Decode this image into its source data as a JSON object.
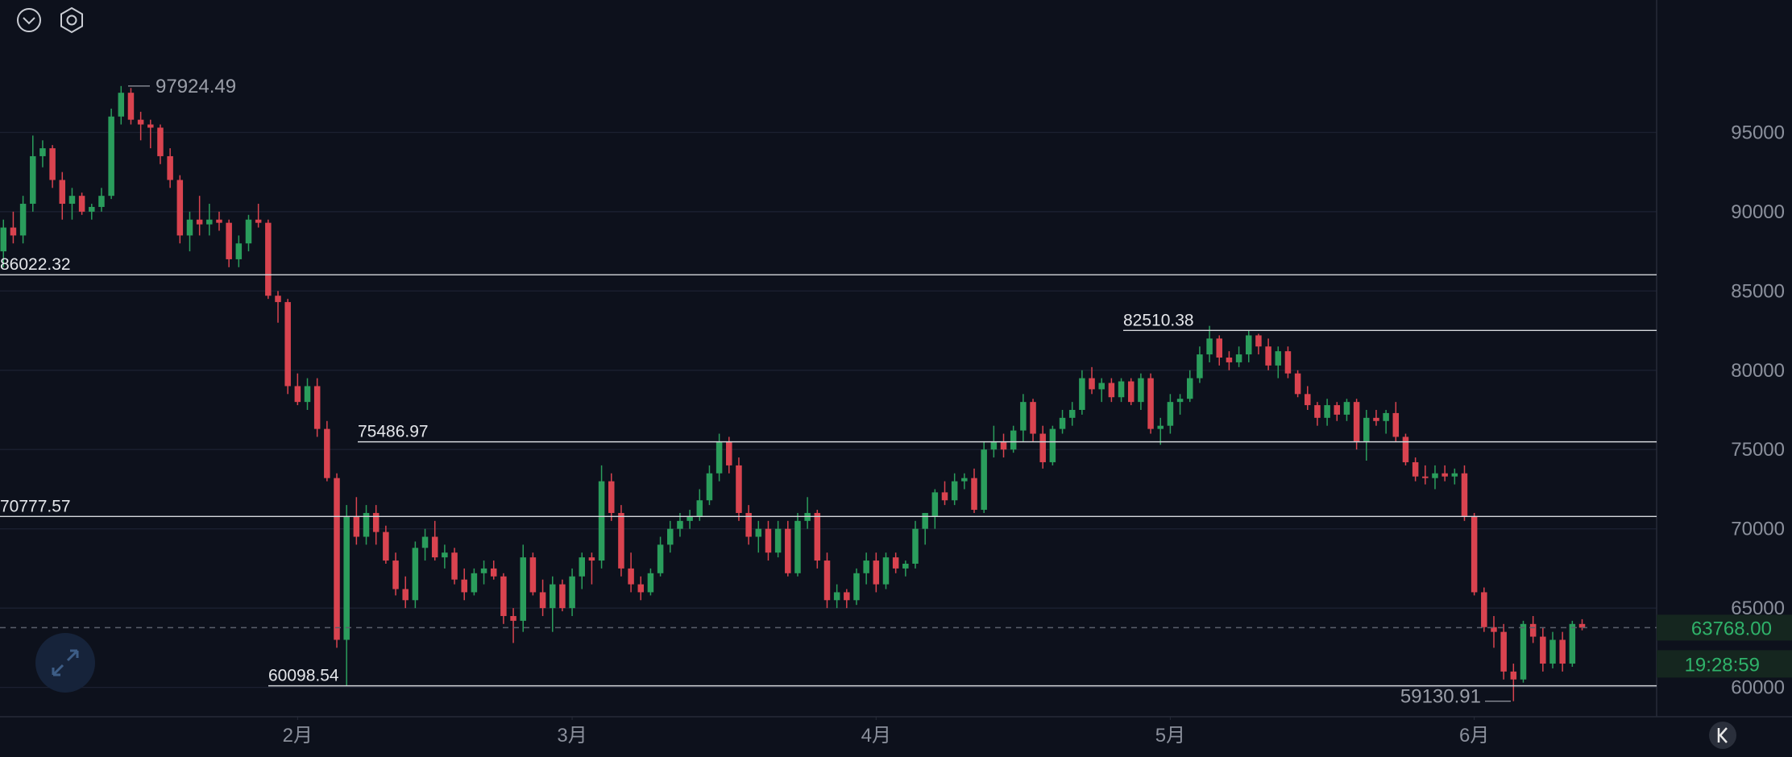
{
  "chart_data": {
    "type": "candlestick",
    "xlim": [
      -0.35,
      168.6
    ],
    "xticks": [
      {
        "value": 30,
        "label": "2月"
      },
      {
        "value": 58,
        "label": "3月"
      },
      {
        "value": 89,
        "label": "4月"
      },
      {
        "value": 119,
        "label": "5月"
      },
      {
        "value": 150,
        "label": "6月"
      }
    ],
    "ylim": [
      58150,
      103350
    ],
    "yticks": [
      60000,
      65000,
      70000,
      75000,
      80000,
      85000,
      90000,
      95000
    ],
    "up_color": "#2a9d5c",
    "down_color": "#d9434f",
    "open": [
      87500,
      89000,
      88500,
      90500,
      93500,
      94000,
      92000,
      90500,
      91000,
      90000,
      90300,
      91000,
      96000,
      97500,
      95800,
      95500,
      95300,
      93500,
      92000,
      88500,
      89500,
      89200,
      89500,
      89300,
      87000,
      88000,
      89500,
      89300,
      84700,
      84300,
      79000,
      78000,
      79000,
      76300,
      73200,
      63000,
      70800,
      69500,
      71000,
      69800,
      68000,
      66200,
      65500,
      68800,
      69500,
      68200,
      68500,
      66800,
      66000,
      67200,
      67500,
      67000,
      64500,
      64200,
      68200,
      66000,
      65000,
      66500,
      65000,
      67000,
      68200,
      68000,
      73000,
      71000,
      67500,
      66500,
      66000,
      67200,
      69000,
      70000,
      70500,
      70800,
      71800,
      73500,
      75500,
      74000,
      71000,
      69500,
      70000,
      68500,
      70000,
      67200,
      70500,
      71000,
      68000,
      65500,
      66000,
      65500,
      67200,
      68000,
      66500,
      68200,
      67500,
      67800,
      70000,
      70800,
      72300,
      71800,
      73000,
      73200,
      71200,
      75000,
      75500,
      75000,
      76200,
      78000,
      76000,
      74200,
      76300,
      77000,
      77500,
      79500,
      78800,
      79200,
      78300,
      79300,
      78000,
      79500,
      76300,
      76500,
      78000,
      78200,
      79500,
      81000,
      82000,
      80800,
      80500,
      81000,
      82200,
      81500,
      80300,
      81200,
      79800,
      78500,
      77800,
      77000,
      77800,
      77200,
      78000,
      75500,
      77000,
      76800,
      77300,
      75800,
      74200,
      73300,
      73200,
      73500,
      73300,
      73500,
      70800,
      66000,
      63800,
      63500,
      61000,
      60500,
      64000,
      63200,
      61500,
      63000,
      61500,
      64000
    ],
    "high": [
      89500,
      90000,
      91000,
      94800,
      94500,
      94200,
      92500,
      91500,
      91200,
      90500,
      91500,
      96500,
      97924.49,
      97800,
      96300,
      95800,
      95500,
      94000,
      92300,
      90000,
      91000,
      90500,
      90000,
      89500,
      88500,
      89800,
      90500,
      89500,
      85000,
      84500,
      79800,
      79500,
      79500,
      76800,
      73500,
      71500,
      72000,
      71500,
      71500,
      70200,
      68500,
      67000,
      69200,
      70000,
      70500,
      69000,
      68800,
      67500,
      67500,
      68000,
      68000,
      67200,
      65000,
      69000,
      68500,
      66800,
      67000,
      66800,
      67500,
      68500,
      68500,
      74000,
      73500,
      71500,
      68500,
      67000,
      67500,
      69500,
      70500,
      71000,
      71200,
      72500,
      74000,
      76000,
      75800,
      74500,
      71500,
      70500,
      70500,
      70500,
      70500,
      71000,
      72000,
      71200,
      68500,
      66500,
      66200,
      67500,
      68500,
      68500,
      68500,
      68500,
      68000,
      70500,
      71000,
      72500,
      73000,
      73500,
      73500,
      73800,
      75500,
      76500,
      76000,
      76500,
      78500,
      78200,
      76500,
      76500,
      77500,
      78000,
      80000,
      80200,
      79500,
      79500,
      79500,
      79500,
      79800,
      79800,
      77000,
      78500,
      78500,
      80000,
      81500,
      82800,
      82200,
      81200,
      81500,
      82510.38,
      82300,
      82000,
      81500,
      81500,
      80000,
      79000,
      78000,
      78200,
      78000,
      78200,
      78200,
      77500,
      77500,
      77500,
      78000,
      76000,
      74500,
      74000,
      74000,
      74000,
      73800,
      74000,
      71000,
      66300,
      64500,
      64000,
      61500,
      64200,
      64500,
      63800,
      63500,
      63500,
      64200,
      64300
    ],
    "low": [
      86500,
      88000,
      88000,
      90000,
      92800,
      91500,
      89500,
      89500,
      89800,
      89500,
      90000,
      90800,
      95500,
      95500,
      94500,
      94000,
      93000,
      91500,
      88000,
      87500,
      88500,
      88500,
      88800,
      86500,
      86500,
      87500,
      89000,
      84500,
      83000,
      78500,
      77800,
      77500,
      75800,
      73000,
      62500,
      60098.54,
      69000,
      69000,
      69000,
      67800,
      65800,
      65000,
      65000,
      68000,
      68000,
      67500,
      66500,
      65500,
      65800,
      66500,
      66800,
      64000,
      62800,
      63500,
      65800,
      64500,
      63500,
      64800,
      64500,
      66200,
      66500,
      67500,
      70500,
      67000,
      66000,
      65500,
      65800,
      67000,
      68500,
      69500,
      70000,
      70500,
      71500,
      73000,
      73500,
      70500,
      69000,
      68500,
      68000,
      68200,
      67000,
      67000,
      70000,
      67500,
      65000,
      65000,
      65000,
      65200,
      66500,
      66000,
      66200,
      67200,
      67000,
      67500,
      69000,
      70000,
      71500,
      71500,
      72500,
      71000,
      71000,
      74500,
      74500,
      74800,
      75500,
      75500,
      73800,
      74000,
      76000,
      76500,
      77200,
      78500,
      78000,
      78000,
      78000,
      77800,
      77500,
      76000,
      75300,
      76000,
      77200,
      78000,
      79200,
      80500,
      80300,
      80000,
      80200,
      80500,
      81000,
      80000,
      79500,
      79500,
      78300,
      77500,
      76500,
      76500,
      76800,
      76800,
      75000,
      74300,
      76500,
      76000,
      75500,
      74000,
      73000,
      72800,
      72500,
      73000,
      72800,
      70500,
      65800,
      63500,
      62500,
      60500,
      59130.91,
      60300,
      62800,
      61000,
      61200,
      61000,
      61300,
      63600
    ],
    "close": [
      89000,
      88500,
      90500,
      93500,
      94000,
      92000,
      90500,
      91000,
      90000,
      90300,
      91000,
      96000,
      97500,
      95800,
      95500,
      95300,
      93500,
      92000,
      88500,
      89500,
      89200,
      89500,
      89300,
      87000,
      88000,
      89500,
      89300,
      84700,
      84300,
      79000,
      78000,
      79000,
      76300,
      73200,
      63000,
      70800,
      69500,
      71000,
      69800,
      68000,
      66200,
      65500,
      68800,
      69500,
      68200,
      68500,
      66800,
      66000,
      67200,
      67500,
      67000,
      64500,
      64200,
      68200,
      66000,
      65000,
      66500,
      65000,
      67000,
      68200,
      68000,
      73000,
      71000,
      67500,
      66500,
      66000,
      67200,
      69000,
      70000,
      70500,
      70800,
      71800,
      73500,
      75500,
      74000,
      71000,
      69500,
      70000,
      68500,
      70000,
      67200,
      70500,
      71000,
      68000,
      65500,
      66000,
      65500,
      67200,
      68000,
      66500,
      68200,
      67500,
      67800,
      70000,
      71000,
      72300,
      71800,
      73000,
      73200,
      71200,
      75000,
      75500,
      75000,
      76200,
      78000,
      76000,
      74200,
      76300,
      77000,
      77500,
      79500,
      78800,
      79200,
      78300,
      79300,
      78000,
      79500,
      76300,
      76500,
      78000,
      78200,
      79500,
      81000,
      82000,
      80800,
      80500,
      81000,
      82200,
      81500,
      80300,
      81200,
      79800,
      78500,
      77800,
      77000,
      77800,
      77200,
      78000,
      75500,
      77000,
      76800,
      77300,
      75800,
      74200,
      73300,
      73200,
      73500,
      73300,
      73500,
      70800,
      66000,
      63800,
      63500,
      61000,
      60500,
      64000,
      63200,
      61500,
      63000,
      61500,
      64000,
      63768
    ],
    "levels": [
      86022.32,
      82510.38,
      75486.97,
      70777.57,
      60098.54
    ],
    "annotations": [
      97924.49,
      59130.91
    ],
    "last_price": {
      "value": 63768,
      "label": "63768.00"
    },
    "countdown": "19:28:59"
  }
}
